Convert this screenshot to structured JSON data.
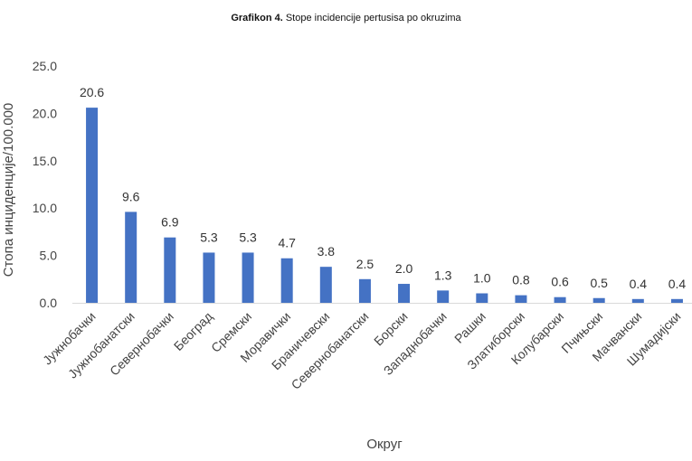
{
  "chart_data": {
    "type": "bar",
    "title_prefix": "Grafikon 4.",
    "title": "Stope incidencije pertusisa po okruzima",
    "xlabel": "Округ",
    "ylabel": "Стопа инциденције/100.000",
    "ylim": [
      0,
      25
    ],
    "yticks": [
      "0.0",
      "5.0",
      "10.0",
      "15.0",
      "20.0",
      "25.0"
    ],
    "grid": false,
    "bar_color": "#4472C4",
    "categories": [
      "Јужнобачки",
      "Јужнобанатски",
      "Севернобачки",
      "Београд",
      "Сремски",
      "Моравички",
      "Браничевски",
      "Севернобанатски",
      "Борски",
      "Западнобачки",
      "Рашки",
      "Златиборски",
      "Колубарски",
      "Пчињски",
      "Мачвански",
      "Шумадијски"
    ],
    "values": [
      20.6,
      9.6,
      6.9,
      5.3,
      5.3,
      4.7,
      3.8,
      2.5,
      2.0,
      1.3,
      1.0,
      0.8,
      0.6,
      0.5,
      0.4,
      0.4
    ],
    "value_labels": [
      "20.6",
      "9.6",
      "6.9",
      "5.3",
      "5.3",
      "4.7",
      "3.8",
      "2.5",
      "2.0",
      "1.3",
      "1.0",
      "0.8",
      "0.6",
      "0.5",
      "0.4",
      "0.4"
    ]
  }
}
